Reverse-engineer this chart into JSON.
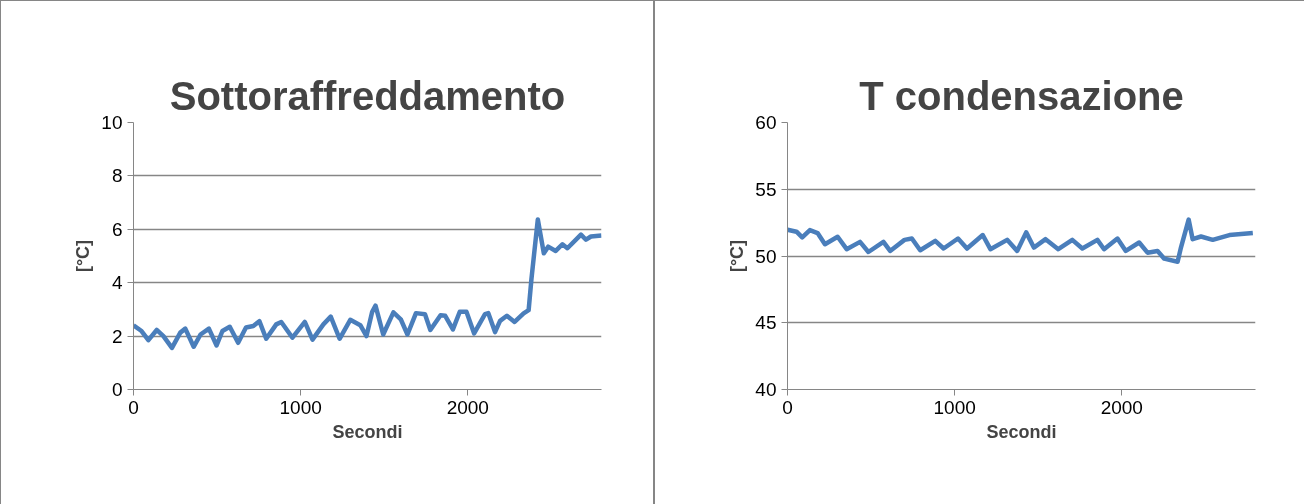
{
  "chart_data": [
    {
      "type": "line",
      "title": "Sottoraffreddamento",
      "xlabel": "Secondi",
      "ylabel": "[°C]",
      "xlim": [
        0,
        2800
      ],
      "xticks": [
        0,
        1000,
        2000
      ],
      "ylim": [
        0,
        10
      ],
      "yticks": [
        0,
        2,
        4,
        6,
        8,
        10
      ],
      "grid": "y",
      "line_style": "solid",
      "marker": "none",
      "series": [
        {
          "color": "#4a7ebb",
          "x": [
            0,
            48,
            89,
            139,
            179,
            230,
            280,
            310,
            360,
            401,
            451,
            497,
            532,
            576,
            626,
            673,
            717,
            753,
            794,
            854,
            884,
            951,
            1025,
            1071,
            1136,
            1180,
            1233,
            1297,
            1357,
            1394,
            1428,
            1448,
            1494,
            1555,
            1599,
            1639,
            1690,
            1744,
            1776,
            1837,
            1865,
            1911,
            1952,
            1992,
            2038,
            2103,
            2123,
            2163,
            2193,
            2234,
            2280,
            2334,
            2364,
            2381,
            2419,
            2455,
            2481,
            2526,
            2566,
            2596,
            2677,
            2707,
            2737,
            2800
          ],
          "values": [
            2.4,
            2.19,
            1.85,
            2.23,
            2.0,
            1.56,
            2.13,
            2.28,
            1.6,
            2.06,
            2.28,
            1.65,
            2.19,
            2.35,
            1.75,
            2.32,
            2.38,
            2.56,
            1.9,
            2.44,
            2.53,
            1.94,
            2.53,
            1.87,
            2.44,
            2.73,
            1.9,
            2.61,
            2.41,
            2.0,
            2.91,
            3.14,
            2.06,
            2.89,
            2.63,
            2.06,
            2.86,
            2.82,
            2.23,
            2.78,
            2.76,
            2.25,
            2.91,
            2.91,
            2.1,
            2.82,
            2.86,
            2.15,
            2.57,
            2.76,
            2.53,
            2.85,
            2.97,
            4.15,
            6.37,
            5.1,
            5.35,
            5.19,
            5.44,
            5.29,
            5.8,
            5.61,
            5.73,
            5.77
          ]
        }
      ]
    },
    {
      "type": "line",
      "title": "T condensazione",
      "xlabel": "Secondi",
      "ylabel": "[°C]",
      "xlim": [
        0,
        2800
      ],
      "xticks": [
        0,
        1000,
        2000
      ],
      "ylim": [
        40,
        60
      ],
      "yticks": [
        40,
        45,
        50,
        55,
        60
      ],
      "grid": "y",
      "line_style": "solid",
      "marker": "none",
      "series": [
        {
          "color": "#4a7ebb",
          "x": [
            0,
            54,
            88,
            134,
            180,
            224,
            300,
            354,
            434,
            484,
            574,
            614,
            700,
            744,
            794,
            884,
            934,
            1020,
            1074,
            1168,
            1214,
            1314,
            1374,
            1428,
            1474,
            1544,
            1620,
            1704,
            1764,
            1854,
            1894,
            1974,
            2024,
            2104,
            2154,
            2214,
            2254,
            2334,
            2354,
            2400,
            2424,
            2474,
            2544,
            2644,
            2784
          ],
          "values": [
            51.97,
            51.82,
            51.39,
            51.94,
            51.72,
            50.88,
            51.44,
            50.51,
            51.06,
            50.3,
            51.06,
            50.38,
            51.21,
            51.31,
            50.43,
            51.14,
            50.56,
            51.31,
            50.56,
            51.57,
            50.51,
            51.21,
            50.38,
            51.77,
            50.63,
            51.26,
            50.51,
            51.21,
            50.56,
            51.21,
            50.51,
            51.31,
            50.38,
            51.01,
            50.25,
            50.38,
            49.8,
            49.57,
            50.63,
            52.73,
            51.26,
            51.46,
            51.21,
            51.57,
            51.72
          ]
        }
      ]
    }
  ]
}
